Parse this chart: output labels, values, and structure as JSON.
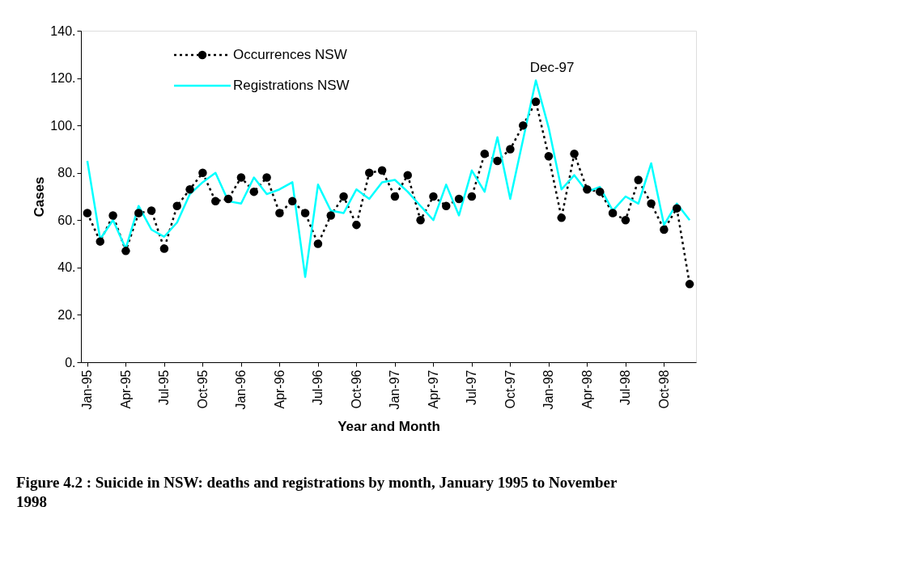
{
  "chart_data": {
    "type": "line",
    "categories": [
      "Jan-95",
      null,
      null,
      "Apr-95",
      null,
      null,
      "Jul-95",
      null,
      null,
      "Oct-95",
      null,
      null,
      "Jan-96",
      null,
      null,
      "Apr-96",
      null,
      null,
      "Jul-96",
      null,
      null,
      "Oct-96",
      null,
      null,
      "Jan-97",
      null,
      null,
      "Apr-97",
      null,
      null,
      "Jul-97",
      null,
      null,
      "Oct-97",
      null,
      null,
      "Jan-98",
      null,
      null,
      "Apr-98",
      null,
      null,
      "Jul-98",
      null,
      null,
      "Oct-98",
      null,
      null
    ],
    "series": [
      {
        "name": "Occurrences NSW",
        "color": "#000000",
        "marker": "circle",
        "line_style": "dashed",
        "values": [
          63,
          51,
          62,
          47,
          63,
          64,
          48,
          66,
          73,
          80,
          68,
          69,
          78,
          72,
          78,
          63,
          68,
          63,
          50,
          62,
          70,
          58,
          80,
          81,
          70,
          79,
          60,
          70,
          66,
          69,
          70,
          88,
          85,
          90,
          100,
          110,
          87,
          61,
          88,
          73,
          72,
          63,
          60,
          77,
          67,
          56,
          65,
          33
        ]
      },
      {
        "name": "Registrations NSW",
        "color": "#00ffff",
        "marker": "none",
        "line_style": "solid",
        "values": [
          85,
          52,
          60,
          48,
          66,
          56,
          53,
          59,
          71,
          76,
          80,
          68,
          67,
          78,
          71,
          73,
          76,
          36,
          75,
          64,
          63,
          73,
          69,
          76,
          77,
          72,
          66,
          60,
          75,
          62,
          81,
          72,
          95,
          69,
          94,
          119,
          99,
          73,
          79,
          72,
          74,
          64,
          70,
          67,
          84,
          58,
          67,
          60
        ]
      }
    ],
    "ylim": [
      0,
      140
    ],
    "yticks": [
      {
        "value": 0,
        "label": "0."
      },
      {
        "value": 20,
        "label": "20."
      },
      {
        "value": 40,
        "label": "40."
      },
      {
        "value": 60,
        "label": "60."
      },
      {
        "value": 80,
        "label": "80."
      },
      {
        "value": 100,
        "label": "100."
      },
      {
        "value": 120,
        "label": "120."
      },
      {
        "value": 140,
        "label": "140."
      }
    ],
    "xlabel": "Year and Month",
    "ylabel": "Cases",
    "legend": "top left",
    "grid": false,
    "annotations": [
      "Dec-97",
      "Figure 4.2 : Suicide in NSW: deaths and registrations by month, January 1995 to November 1998"
    ]
  }
}
